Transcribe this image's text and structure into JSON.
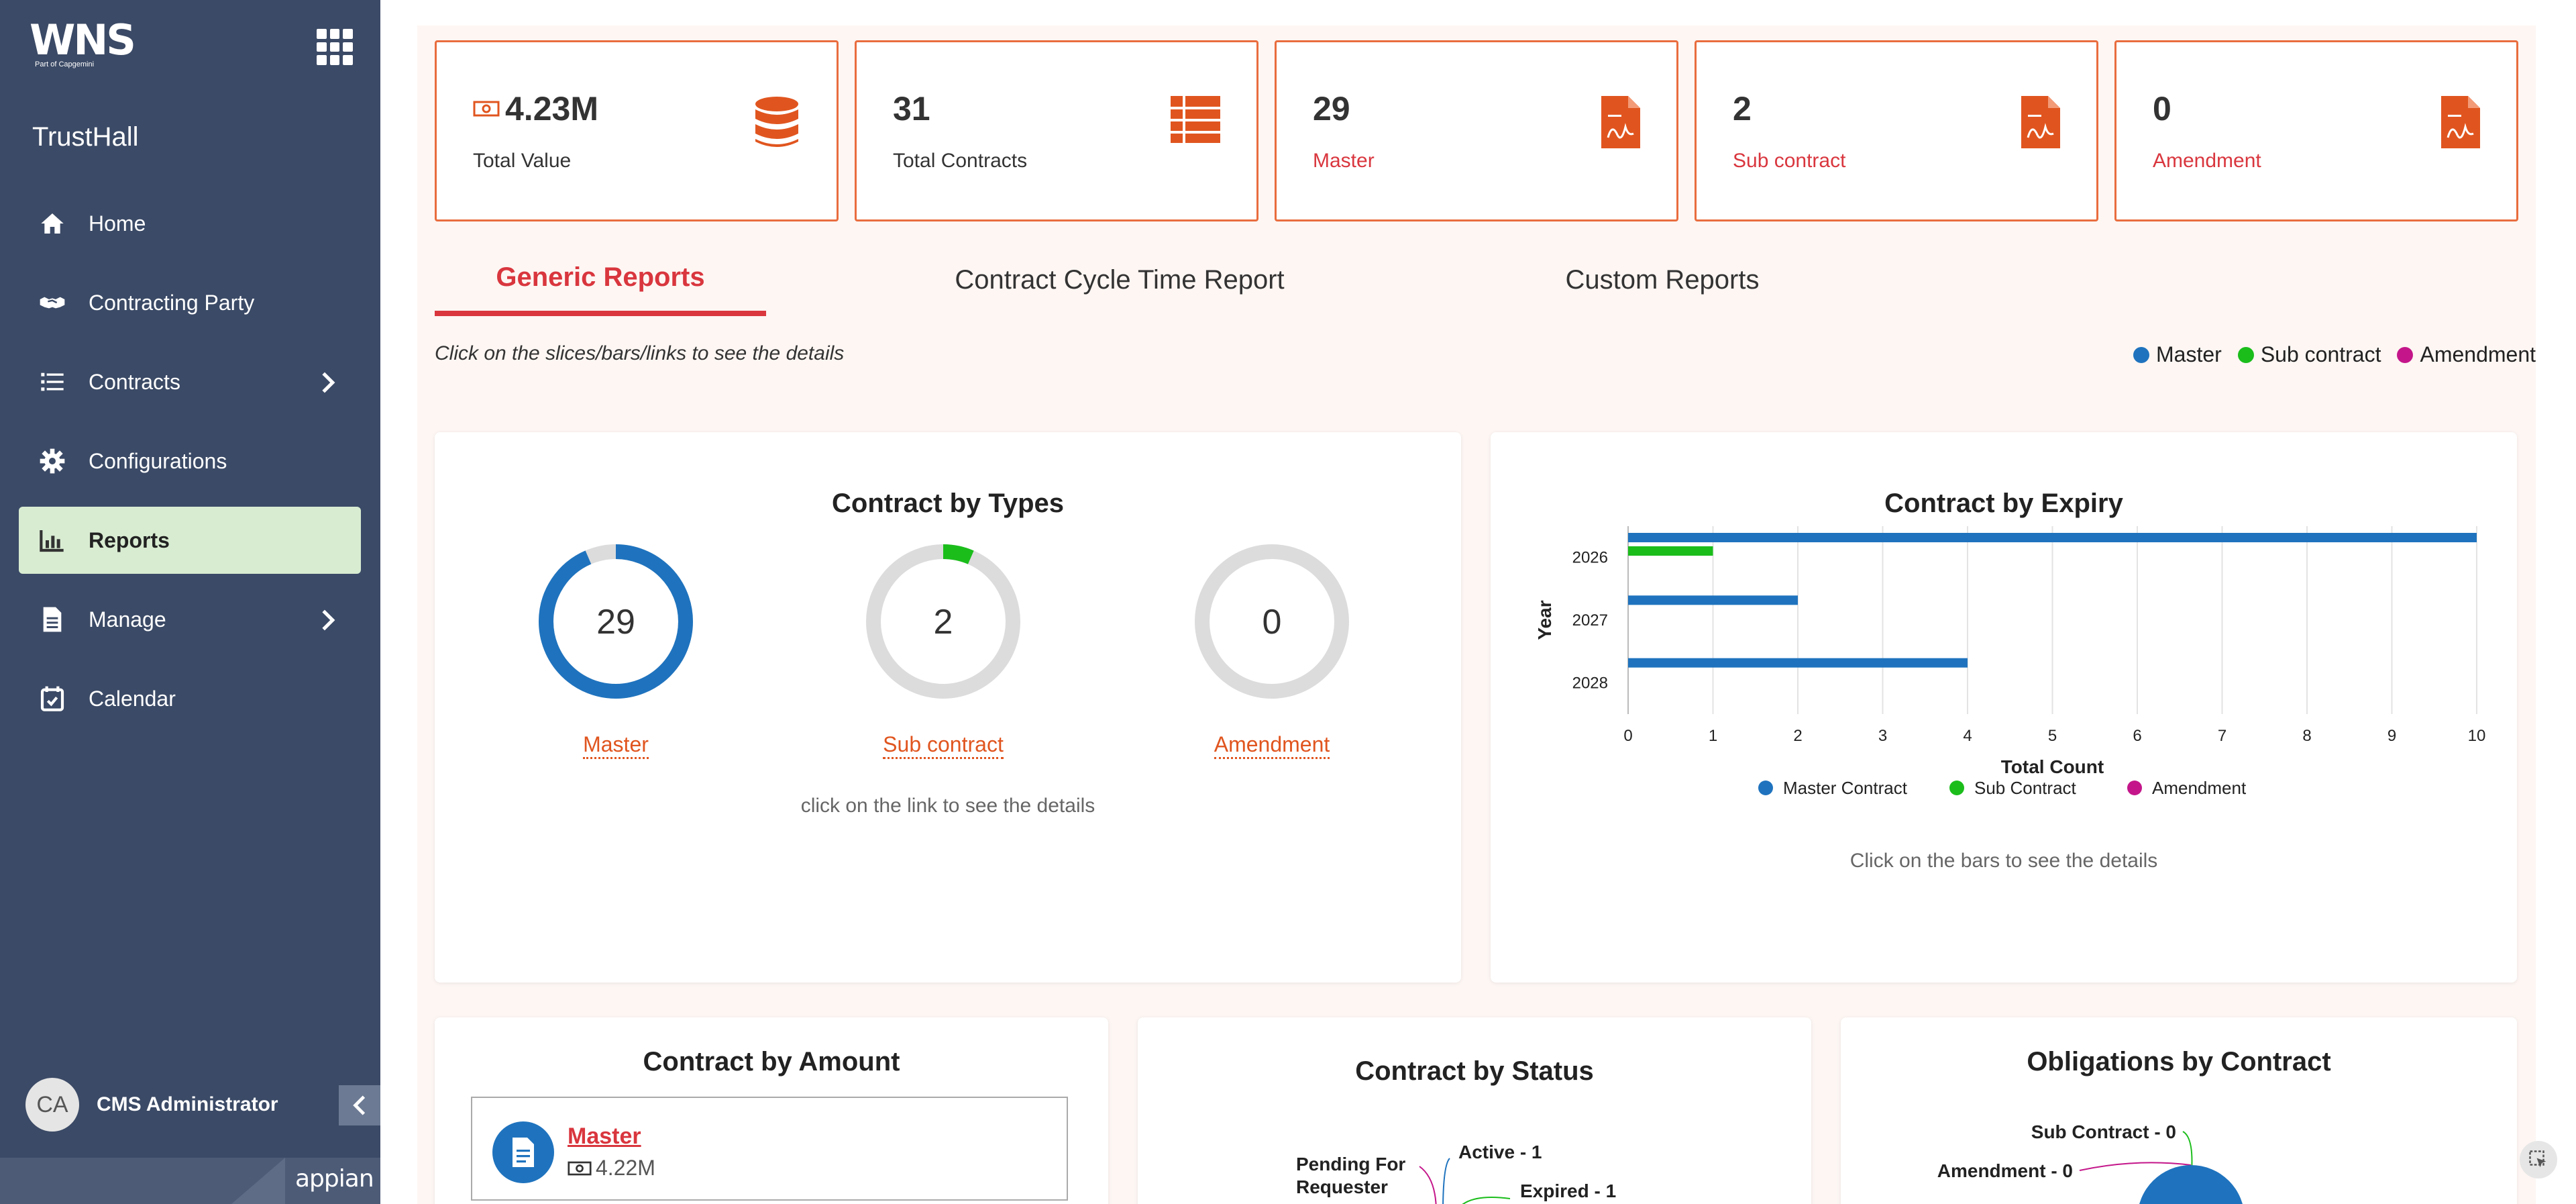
{
  "sidebar": {
    "logo_text": "WNS",
    "logo_sub": "Part of Capgemini",
    "app_name": "TrustHall",
    "items": [
      {
        "label": "Home"
      },
      {
        "label": "Contracting Party"
      },
      {
        "label": "Contracts"
      },
      {
        "label": "Configurations"
      },
      {
        "label": "Reports"
      },
      {
        "label": "Manage"
      },
      {
        "label": "Calendar"
      }
    ],
    "user_initials": "CA",
    "user_name": "CMS Administrator",
    "footer_brand": "appian"
  },
  "kpis": [
    {
      "value": "4.23M",
      "label": "Total Value",
      "icon": "database-icon"
    },
    {
      "value": "31",
      "label": "Total Contracts",
      "icon": "table-icon"
    },
    {
      "value": "29",
      "label": "Master",
      "icon": "pdf-file-icon"
    },
    {
      "value": "2",
      "label": "Sub contract",
      "icon": "pdf-file-icon"
    },
    {
      "value": "0",
      "label": "Amendment",
      "icon": "pdf-file-icon"
    }
  ],
  "tabs": [
    "Generic Reports",
    "Contract Cycle Time Report",
    "Custom Reports"
  ],
  "hint": "Click on the slices/bars/links to see the details",
  "legend_top": [
    {
      "label": "Master",
      "color": "#1f73be"
    },
    {
      "label": "Sub contract",
      "color": "#1bbd1b"
    },
    {
      "label": "Amendment",
      "color": "#c4168a"
    }
  ],
  "types_card": {
    "title": "Contract by Types",
    "donuts": [
      {
        "value": "29",
        "label": "Master",
        "fraction": 0.935,
        "color": "#1f73be"
      },
      {
        "value": "2",
        "label": "Sub contract",
        "fraction": 0.065,
        "color": "#1bbd1b"
      },
      {
        "value": "0",
        "label": "Amendment",
        "fraction": 0.0,
        "color": "#c4168a"
      }
    ],
    "note": "click on the link to see the details"
  },
  "expiry_card": {
    "title": "Contract by Expiry",
    "note": "Click on the bars to see the details",
    "legend": [
      {
        "label": "Master Contract",
        "color": "#1f73be"
      },
      {
        "label": "Sub Contract",
        "color": "#1bbd1b"
      },
      {
        "label": "Amendment",
        "color": "#c4168a"
      }
    ]
  },
  "chart_data": {
    "type": "bar",
    "orientation": "horizontal",
    "title": "Contract by Expiry",
    "xlabel": "Total Count",
    "ylabel": "Year",
    "categories": [
      "2026",
      "2027",
      "2028"
    ],
    "series": [
      {
        "name": "Master Contract",
        "values": [
          10,
          2,
          4
        ],
        "color": "#1f73be"
      },
      {
        "name": "Sub Contract",
        "values": [
          1,
          0,
          0
        ],
        "color": "#1bbd1b"
      },
      {
        "name": "Amendment",
        "values": [
          0,
          0,
          0
        ],
        "color": "#c4168a"
      }
    ],
    "xlim": [
      0,
      10
    ],
    "xticks": [
      "0",
      "1",
      "2",
      "3",
      "4",
      "5",
      "6",
      "7",
      "8",
      "9",
      "10"
    ],
    "grid": true,
    "legend_position": "bottom"
  },
  "amount_card": {
    "title": "Contract by Amount",
    "item_label": "Master",
    "item_value": "4.22M"
  },
  "status_card": {
    "title": "Contract by Status",
    "labels": [
      "Pending For",
      "Requester",
      "Active - 1",
      "Expired - 1"
    ]
  },
  "obligations_card": {
    "title": "Obligations by Contract",
    "labels": [
      "Sub Contract - 0",
      "Amendment - 0"
    ]
  }
}
